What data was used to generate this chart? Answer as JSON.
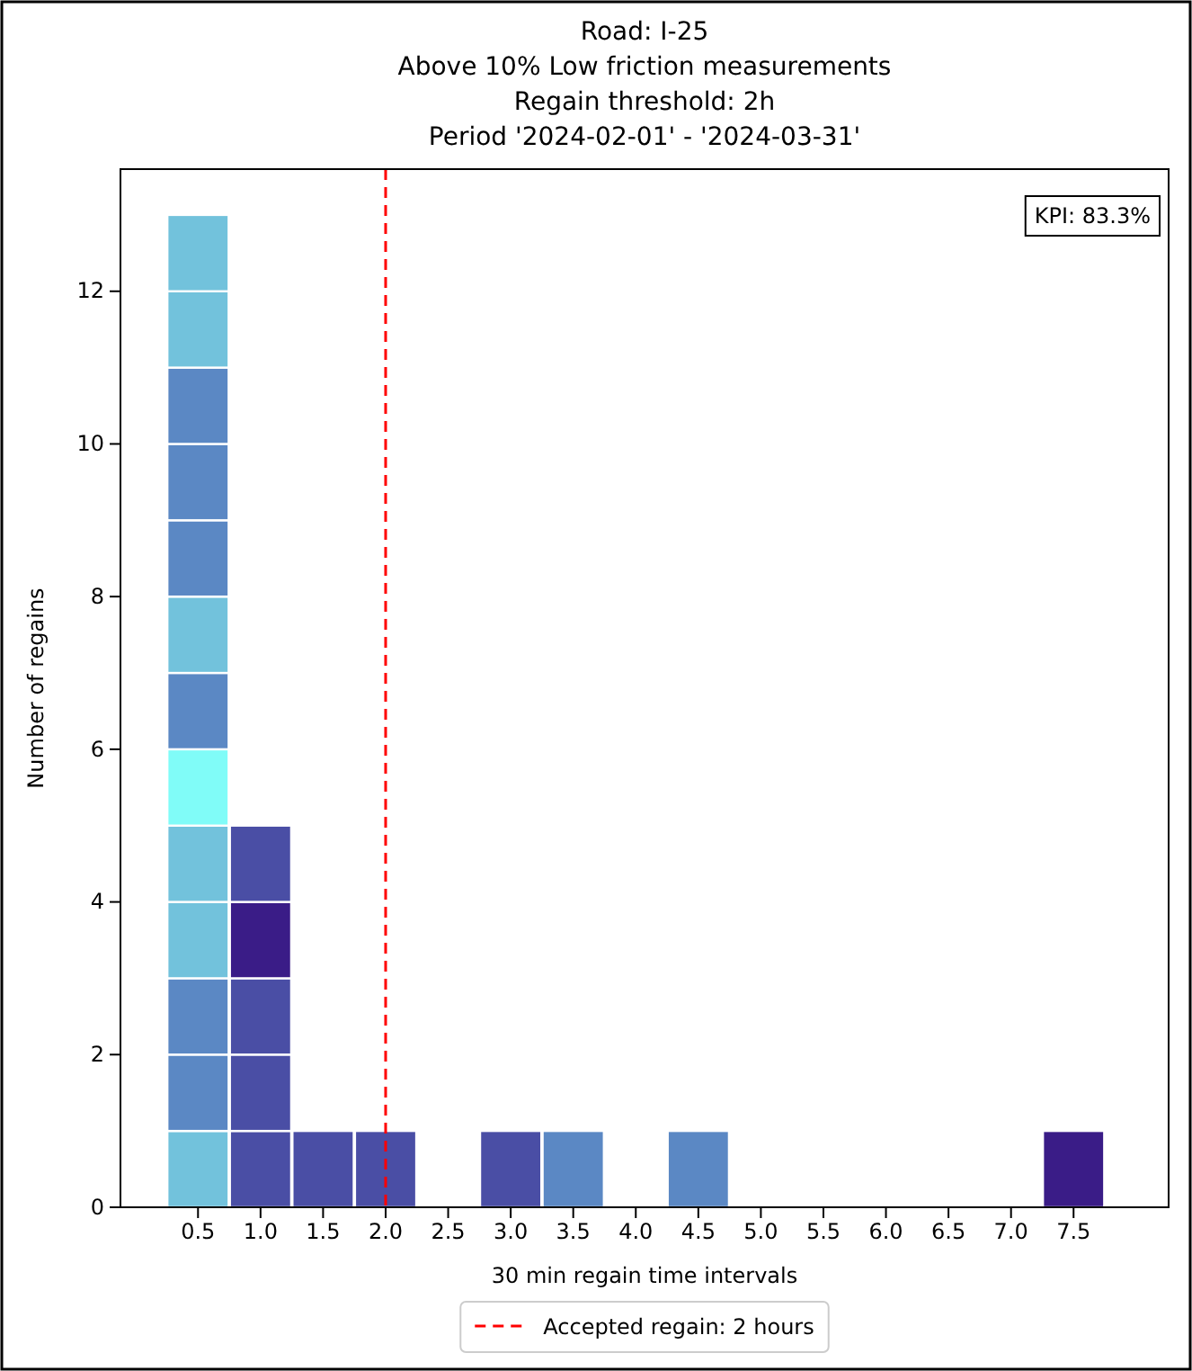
{
  "chart_data": {
    "type": "bar",
    "stacked": true,
    "title": "Road: I-25\nAbove 10% Low friction measurements\nRegain threshold: 2h\nPeriod '2024-02-01' - '2024-03-31'",
    "xlabel": "30 min regain time intervals",
    "ylabel": "Number of regains",
    "x": [
      0.5,
      1.0,
      1.5,
      2.0,
      2.5,
      3.0,
      3.5,
      4.0,
      4.5,
      5.0,
      5.5,
      6.0,
      6.5,
      7.0,
      7.5
    ],
    "xlim": [
      -0.12,
      8.26
    ],
    "xticks": [
      0.5,
      {
        "value": 1,
        "label": "1.0"
      },
      1.5,
      {
        "value": 2,
        "label": "2.0"
      },
      2.5,
      {
        "value": 3,
        "label": "3.0"
      },
      3.5,
      {
        "value": 4,
        "label": "4.0"
      },
      4.5,
      {
        "value": 5,
        "label": "5.0"
      },
      5.5,
      {
        "value": 6,
        "label": "6.0"
      },
      6.5,
      {
        "value": 7,
        "label": "7.0"
      },
      7.5
    ],
    "ylim": [
      0,
      13.6
    ],
    "yticks": [
      0,
      2,
      4,
      6,
      8,
      10,
      12
    ],
    "series": [
      {
        "values": [
          1,
          1,
          1,
          1,
          null,
          1,
          1,
          null,
          1,
          null,
          null,
          null,
          null,
          null,
          1
        ],
        "colors": [
          "#72c2dc",
          "#4a4ea5",
          "#4a4ea5",
          "#4a4ea5",
          null,
          "#4a4ea5",
          "#5b88c4",
          null,
          "#5b88c4",
          null,
          null,
          null,
          null,
          null,
          "#3a1c87"
        ]
      },
      {
        "values": [
          1,
          1,
          null,
          null,
          null,
          null,
          null,
          null,
          null,
          null,
          null,
          null,
          null,
          null,
          null
        ],
        "colors": [
          "#5b88c4",
          "#4a4ea5",
          null,
          null,
          null,
          null,
          null,
          null,
          null,
          null,
          null,
          null,
          null,
          null,
          null
        ]
      },
      {
        "values": [
          1,
          1,
          null,
          null,
          null,
          null,
          null,
          null,
          null,
          null,
          null,
          null,
          null,
          null,
          null
        ],
        "colors": [
          "#5b88c4",
          "#4a4ea5",
          null,
          null,
          null,
          null,
          null,
          null,
          null,
          null,
          null,
          null,
          null,
          null,
          null
        ]
      },
      {
        "values": [
          1,
          1,
          null,
          null,
          null,
          null,
          null,
          null,
          null,
          null,
          null,
          null,
          null,
          null,
          null
        ],
        "colors": [
          "#72c2dc",
          "#3a1c87",
          null,
          null,
          null,
          null,
          null,
          null,
          null,
          null,
          null,
          null,
          null,
          null,
          null
        ]
      },
      {
        "values": [
          1,
          1,
          null,
          null,
          null,
          null,
          null,
          null,
          null,
          null,
          null,
          null,
          null,
          null,
          null
        ],
        "colors": [
          "#72c2dc",
          "#4a4ea5",
          null,
          null,
          null,
          null,
          null,
          null,
          null,
          null,
          null,
          null,
          null,
          null,
          null
        ]
      },
      {
        "values": [
          1,
          null,
          null,
          null,
          null,
          null,
          null,
          null,
          null,
          null,
          null,
          null,
          null,
          null,
          null
        ],
        "colors": [
          "#80fcf8",
          null,
          null,
          null,
          null,
          null,
          null,
          null,
          null,
          null,
          null,
          null,
          null,
          null,
          null
        ]
      },
      {
        "values": [
          1,
          null,
          null,
          null,
          null,
          null,
          null,
          null,
          null,
          null,
          null,
          null,
          null,
          null,
          null
        ],
        "colors": [
          "#5b88c4",
          null,
          null,
          null,
          null,
          null,
          null,
          null,
          null,
          null,
          null,
          null,
          null,
          null,
          null
        ]
      },
      {
        "values": [
          1,
          null,
          null,
          null,
          null,
          null,
          null,
          null,
          null,
          null,
          null,
          null,
          null,
          null,
          null
        ],
        "colors": [
          "#72c2dc",
          null,
          null,
          null,
          null,
          null,
          null,
          null,
          null,
          null,
          null,
          null,
          null,
          null,
          null
        ]
      },
      {
        "values": [
          1,
          null,
          null,
          null,
          null,
          null,
          null,
          null,
          null,
          null,
          null,
          null,
          null,
          null,
          null
        ],
        "colors": [
          "#5b88c4",
          null,
          null,
          null,
          null,
          null,
          null,
          null,
          null,
          null,
          null,
          null,
          null,
          null,
          null
        ]
      },
      {
        "values": [
          1,
          null,
          null,
          null,
          null,
          null,
          null,
          null,
          null,
          null,
          null,
          null,
          null,
          null,
          null
        ],
        "colors": [
          "#5b88c4",
          null,
          null,
          null,
          null,
          null,
          null,
          null,
          null,
          null,
          null,
          null,
          null,
          null,
          null
        ]
      },
      {
        "values": [
          1,
          null,
          null,
          null,
          null,
          null,
          null,
          null,
          null,
          null,
          null,
          null,
          null,
          null,
          null
        ],
        "colors": [
          "#5b88c4",
          null,
          null,
          null,
          null,
          null,
          null,
          null,
          null,
          null,
          null,
          null,
          null,
          null,
          null
        ]
      },
      {
        "values": [
          1,
          null,
          null,
          null,
          null,
          null,
          null,
          null,
          null,
          null,
          null,
          null,
          null,
          null,
          null
        ],
        "colors": [
          "#72c2dc",
          null,
          null,
          null,
          null,
          null,
          null,
          null,
          null,
          null,
          null,
          null,
          null,
          null,
          null
        ]
      },
      {
        "values": [
          1,
          null,
          null,
          null,
          null,
          null,
          null,
          null,
          null,
          null,
          null,
          null,
          null,
          null,
          null
        ],
        "colors": [
          "#72c2dc",
          null,
          null,
          null,
          null,
          null,
          null,
          null,
          null,
          null,
          null,
          null,
          null,
          null,
          null
        ]
      }
    ],
    "ref_lines": [
      {
        "axis": "x",
        "value": 2.0,
        "label": "Accepted regain: 2 hours",
        "color": "#ff0000",
        "line_style": "dashed"
      }
    ],
    "annotations": [
      "KPI: 83.3%"
    ],
    "legend": "bottom",
    "grid": false
  }
}
